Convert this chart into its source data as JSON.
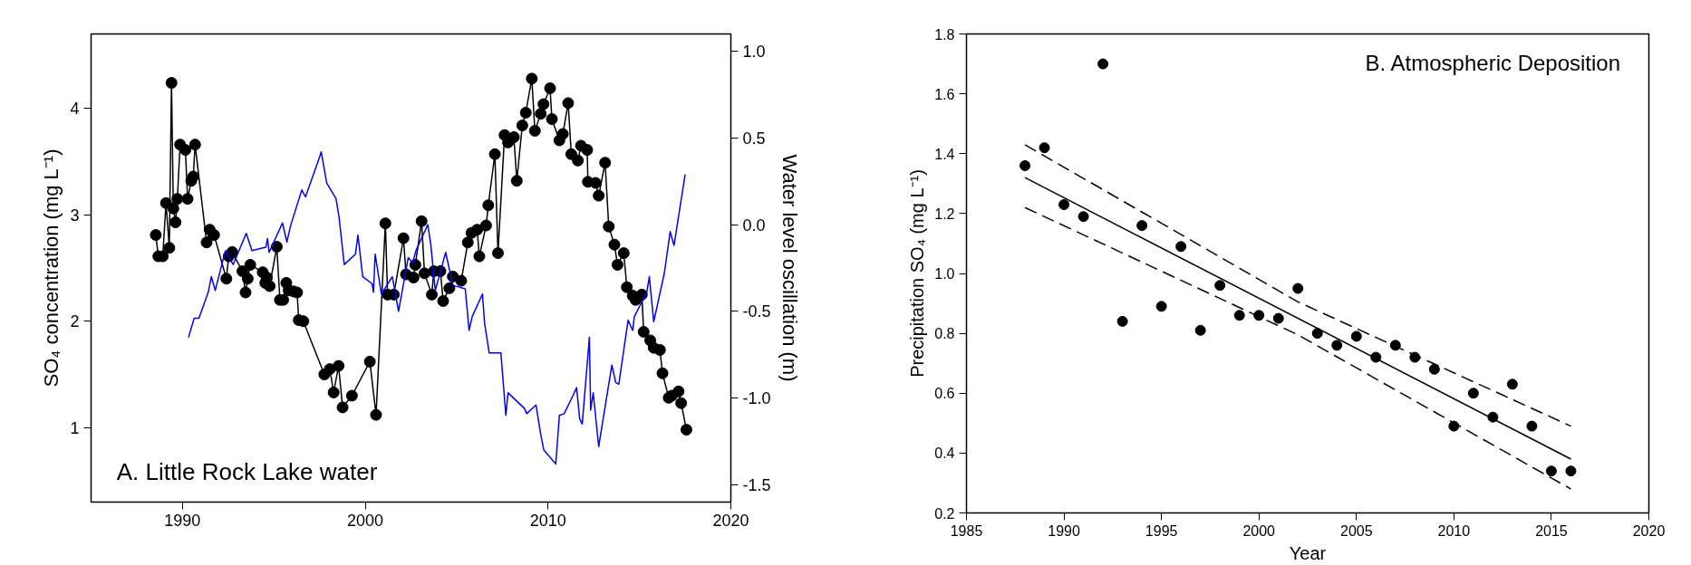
{
  "chart_data": [
    {
      "type": "line",
      "ylabel": "SO₄ concentration (mg L⁻¹)",
      "y2label": "Water level oscillation (m)",
      "annotations": [
        "A. Little Rock Lake water"
      ],
      "xlim": [
        1985,
        2020
      ],
      "xticks": [
        1990,
        2000,
        2010,
        2020
      ],
      "ylim": [
        0.3,
        4.7
      ],
      "yticks": [
        1,
        2,
        3,
        4
      ],
      "y2lim": [
        -1.6,
        1.1
      ],
      "y2ticks": [
        {
          "value": 1,
          "label": "1.0"
        },
        0.5,
        {
          "value": 0,
          "label": "0.0"
        },
        {
          "value": -0.5,
          "label": "-0.5"
        },
        {
          "value": -1,
          "label": "-1.0"
        },
        {
          "value": -1.5,
          "label": "-1.5"
        }
      ],
      "grid": false,
      "series": [
        {
          "color": "#000000",
          "marker": "circle",
          "x": [
            1988.54,
            1988.68,
            1988.92,
            1989.1,
            1989.28,
            1989.4,
            1989.5,
            1989.62,
            1989.72,
            1989.87,
            1990.16,
            1990.28,
            1990.48,
            1990.59,
            1990.69,
            1991.32,
            1991.49,
            1991.73,
            1992.4,
            1992.53,
            1992.72,
            1993.28,
            1993.45,
            1993.57,
            1993.71,
            1994.39,
            1994.53,
            1994.62,
            1994.77,
            1995.16,
            1995.33,
            1995.51,
            1995.68,
            1995.81,
            1996.07,
            1996.27,
            1996.36,
            1996.61,
            1997.76,
            1998.06,
            1998.27,
            1998.54,
            1998.76,
            1999.27,
            2000.25,
            2000.59,
            2001.1,
            2001.22,
            2001.56,
            2002.09,
            2002.23,
            2002.64,
            2002.74,
            2003.08,
            2003.24,
            2003.64,
            2003.75,
            2004.11,
            2004.26,
            2004.6,
            2004.79,
            2005.25,
            2005.61,
            2005.81,
            2006.12,
            2006.24,
            2006.61,
            2006.73,
            2007.09,
            2007.26,
            2007.62,
            2007.81,
            2008.13,
            2008.29,
            2008.59,
            2008.78,
            2009.11,
            2009.28,
            2009.6,
            2009.75,
            2010.11,
            2010.21,
            2010.62,
            2010.81,
            2011.1,
            2011.27,
            2011.63,
            2011.8,
            2012.14,
            2012.18,
            2012.6,
            2012.77,
            2013.12,
            2013.32,
            2013.63,
            2013.8,
            2014.14,
            2014.31,
            2014.63,
            2014.79,
            2015.13,
            2015.23,
            2015.59,
            2015.78,
            2016.12,
            2016.26,
            2016.6,
            2016.77,
            2017.14,
            2017.28,
            2017.57
          ],
          "values": [
            2.81,
            2.61,
            2.61,
            3.11,
            2.69,
            4.24,
            3.06,
            2.93,
            3.15,
            3.66,
            3.61,
            3.15,
            3.32,
            3.36,
            3.66,
            2.74,
            2.86,
            2.81,
            2.4,
            2.61,
            2.65,
            2.47,
            2.27,
            2.4,
            2.53,
            2.46,
            2.36,
            2.41,
            2.33,
            2.7,
            2.2,
            2.2,
            2.36,
            2.29,
            2.28,
            2.27,
            2.01,
            2.0,
            1.5,
            1.55,
            1.33,
            1.58,
            1.19,
            1.3,
            1.62,
            1.12,
            2.92,
            2.25,
            2.25,
            2.78,
            2.44,
            2.41,
            2.53,
            2.94,
            2.45,
            2.25,
            2.47,
            2.47,
            2.19,
            2.31,
            2.42,
            2.38,
            2.74,
            2.83,
            2.86,
            2.61,
            2.9,
            3.09,
            3.57,
            2.64,
            3.75,
            3.68,
            3.73,
            3.32,
            3.84,
            3.96,
            4.28,
            3.79,
            3.95,
            4.04,
            4.19,
            3.9,
            3.7,
            3.76,
            4.05,
            3.57,
            3.51,
            3.65,
            3.61,
            3.31,
            3.3,
            3.18,
            3.49,
            2.89,
            2.72,
            2.53,
            2.64,
            2.32,
            2.24,
            2.2,
            2.25,
            1.9,
            1.82,
            1.75,
            1.73,
            1.51,
            1.28,
            1.3,
            1.34,
            1.23,
            0.98
          ]
        },
        {
          "color": "#0000ff",
          "axis": "y2",
          "marker": "none",
          "x": [
            1990.33,
            1990.64,
            1990.9,
            1991.41,
            1991.58,
            1991.79,
            1992.35,
            1992.77,
            1993.49,
            1993.8,
            1994.56,
            1994.65,
            1994.74,
            1995.47,
            1995.71,
            1995.93,
            1996.53,
            1996.73,
            1997.47,
            1997.59,
            1997.89,
            1998.4,
            1998.57,
            1998.85,
            1999.46,
            1999.6,
            1999.86,
            2000.37,
            2000.45,
            2000.54,
            2000.88,
            2001.48,
            2001.82,
            2002.35,
            2002.6,
            2002.77,
            2003.42,
            2003.59,
            2003.83,
            2004.4,
            2004.79,
            2005.47,
            2005.68,
            2005.85,
            2006.41,
            2006.53,
            2006.78,
            2007.42,
            2007.69,
            2007.81,
            2008.71,
            2008.83,
            2009.34,
            2009.6,
            2009.77,
            2010.42,
            2010.62,
            2010.88,
            2011.39,
            2011.56,
            2011.73,
            2011.87,
            2012.26,
            2012.33,
            2012.47,
            2012.77,
            2013.49,
            2013.7,
            2013.87,
            2014.38,
            2014.63,
            2014.72,
            2015.4,
            2015.54,
            2015.78,
            2016.36,
            2016.68,
            2016.89,
            2017.5
          ],
          "values": [
            -0.65,
            -0.54,
            -0.54,
            -0.39,
            -0.3,
            -0.38,
            -0.15,
            -0.23,
            -0.05,
            -0.15,
            -0.13,
            -0.08,
            -0.16,
            0.01,
            -0.1,
            0.0,
            0.2,
            0.16,
            0.38,
            0.42,
            0.24,
            0.15,
            0.04,
            -0.23,
            -0.17,
            -0.06,
            -0.3,
            -0.34,
            -0.39,
            -0.17,
            -0.4,
            -0.3,
            -0.5,
            -0.19,
            -0.22,
            -0.15,
            0.0,
            -0.12,
            -0.38,
            -0.16,
            -0.35,
            -0.37,
            -0.61,
            -0.53,
            -0.4,
            -0.57,
            -0.74,
            -0.74,
            -1.1,
            -0.97,
            -1.06,
            -1.09,
            -1.04,
            -1.21,
            -1.3,
            -1.38,
            -1.1,
            -1.09,
            -0.98,
            -0.94,
            -1.12,
            -1.15,
            -0.65,
            -1.07,
            -0.97,
            -1.28,
            -0.81,
            -0.91,
            -0.92,
            -0.55,
            -0.61,
            -0.53,
            -0.39,
            -0.3,
            -0.56,
            -0.28,
            -0.04,
            -0.12,
            0.29
          ]
        }
      ]
    },
    {
      "type": "scatter",
      "xlabel": "Year",
      "ylabel": "Precipitation SO₄ (mg L⁻¹)",
      "annotations": [
        "B. Atmospheric Deposition"
      ],
      "xlim": [
        1985,
        2020
      ],
      "xticks": [
        1985,
        1990,
        1995,
        2000,
        2005,
        2010,
        2015,
        2020
      ],
      "ylim": [
        0.2,
        1.8
      ],
      "yticks": [
        0.2,
        0.4,
        0.6,
        0.8,
        {
          "value": 1,
          "label": "1.0"
        },
        1.2,
        1.4,
        1.6,
        1.8
      ],
      "grid": false,
      "series": [
        {
          "type": "scatter",
          "color": "#000000",
          "marker": "circle",
          "x": [
            1988,
            1989,
            1990,
            1991,
            1992,
            1993,
            1994,
            1995,
            1996,
            1997,
            1998,
            1999,
            2000,
            2001,
            2002,
            2003,
            2004,
            2005,
            2006,
            2007,
            2008,
            2009,
            2010,
            2011,
            2012,
            2013,
            2014,
            2015,
            2016
          ],
          "values": [
            1.36,
            1.42,
            1.23,
            1.19,
            1.7,
            0.84,
            1.16,
            0.89,
            1.09,
            0.81,
            0.96,
            0.86,
            0.86,
            0.85,
            0.95,
            0.8,
            0.76,
            0.79,
            0.72,
            0.76,
            0.72,
            0.68,
            0.49,
            0.6,
            0.52,
            0.63,
            0.49,
            0.34,
            0.34
          ]
        },
        {
          "type": "line",
          "color": "#000000",
          "line_style": "solid",
          "x": [
            1988,
            2016
          ],
          "values": [
            1.32,
            0.38
          ]
        },
        {
          "type": "line",
          "color": "#000000",
          "line_style": "dashed",
          "x": [
            1988,
            2002,
            2016
          ],
          "values": [
            1.43,
            0.905,
            0.49
          ]
        },
        {
          "type": "line",
          "color": "#000000",
          "line_style": "dashed",
          "x": [
            1988,
            2002,
            2016
          ],
          "values": [
            1.22,
            0.795,
            0.28
          ]
        }
      ]
    }
  ]
}
